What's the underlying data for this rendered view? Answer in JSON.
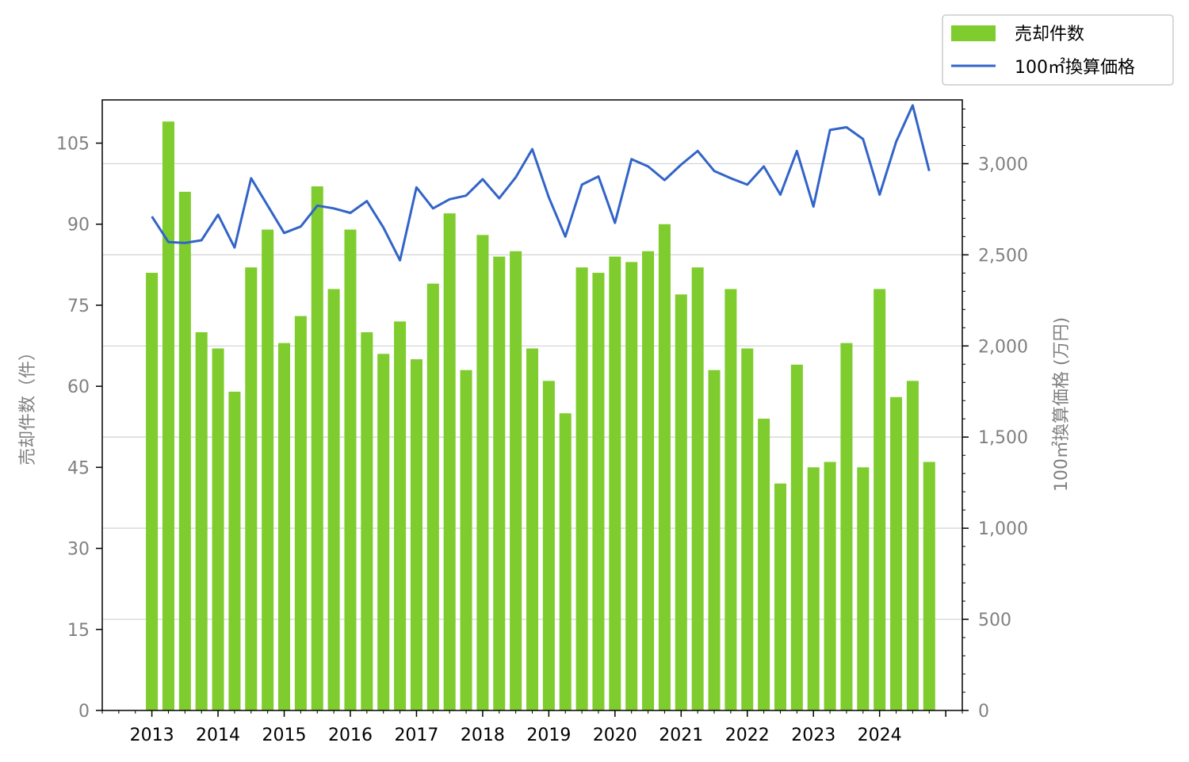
{
  "chart_data": {
    "type": "bar",
    "title": "",
    "xlabel": "",
    "x_ticks": [
      "2013",
      "2014",
      "2015",
      "2016",
      "2017",
      "2018",
      "2019",
      "2020",
      "2021",
      "2022",
      "2023",
      "2024"
    ],
    "x_range": [
      2012.25,
      2025.25
    ],
    "ylabel_left": "売却件数（件）",
    "ylabel_right": "100㎡換算価格 (万円)",
    "ylim_left": [
      0,
      113
    ],
    "yticks_left": [
      "0",
      "15",
      "30",
      "45",
      "60",
      "75",
      "90",
      "105"
    ],
    "ylim_right": [
      0,
      3350
    ],
    "yticks_right": [
      "0",
      "500",
      "1,000",
      "1,500",
      "2,000",
      "2,500",
      "3,000"
    ],
    "grid": "horizontal, right axis",
    "legend": {
      "position": "top-right, outside plot"
    },
    "series": [
      {
        "name": "売却件数",
        "type": "bar",
        "axis": "left",
        "color": "#7fcc2e",
        "x": [
          2013.0,
          2013.25,
          2013.5,
          2013.75,
          2014.0,
          2014.25,
          2014.5,
          2014.75,
          2015.0,
          2015.25,
          2015.5,
          2015.75,
          2016.0,
          2016.25,
          2016.5,
          2016.75,
          2017.0,
          2017.25,
          2017.5,
          2017.75,
          2018.0,
          2018.25,
          2018.5,
          2018.75,
          2019.0,
          2019.25,
          2019.5,
          2019.75,
          2020.0,
          2020.25,
          2020.5,
          2020.75,
          2021.0,
          2021.25,
          2021.5,
          2021.75,
          2022.0,
          2022.25,
          2022.5,
          2022.75,
          2023.0,
          2023.25,
          2023.5,
          2023.75,
          2024.0,
          2024.25,
          2024.5,
          2024.75
        ],
        "values": [
          81,
          109,
          96,
          70,
          67,
          59,
          82,
          89,
          68,
          73,
          97,
          78,
          89,
          70,
          66,
          72,
          65,
          79,
          92,
          63,
          88,
          84,
          85,
          67,
          61,
          55,
          82,
          81,
          84,
          83,
          85,
          90,
          77,
          82,
          63,
          78,
          67,
          54,
          42,
          64,
          45,
          46,
          68,
          45,
          78,
          58,
          61,
          46
        ]
      },
      {
        "name": "100㎡換算価格",
        "type": "line",
        "axis": "right",
        "color": "#3264c8",
        "x": [
          2013.0,
          2013.25,
          2013.5,
          2013.75,
          2014.0,
          2014.25,
          2014.5,
          2014.75,
          2015.0,
          2015.25,
          2015.5,
          2015.75,
          2016.0,
          2016.25,
          2016.5,
          2016.75,
          2017.0,
          2017.25,
          2017.5,
          2017.75,
          2018.0,
          2018.25,
          2018.5,
          2018.75,
          2019.0,
          2019.25,
          2019.5,
          2019.75,
          2020.0,
          2020.25,
          2020.5,
          2020.75,
          2021.0,
          2021.25,
          2021.5,
          2021.75,
          2022.0,
          2022.25,
          2022.5,
          2022.75,
          2023.0,
          2023.25,
          2023.5,
          2023.75,
          2024.0,
          2024.25,
          2024.5,
          2024.75
        ],
        "values": [
          2710,
          2570,
          2565,
          2580,
          2720,
          2540,
          2920,
          2770,
          2620,
          2655,
          2770,
          2755,
          2730,
          2795,
          2650,
          2470,
          2870,
          2755,
          2805,
          2825,
          2915,
          2810,
          2925,
          3080,
          2815,
          2600,
          2885,
          2930,
          2675,
          3025,
          2985,
          2910,
          2995,
          3070,
          2960,
          2920,
          2885,
          2985,
          2830,
          3070,
          2765,
          3185,
          3200,
          3135,
          2830,
          3120,
          3320,
          2960
        ]
      }
    ]
  }
}
